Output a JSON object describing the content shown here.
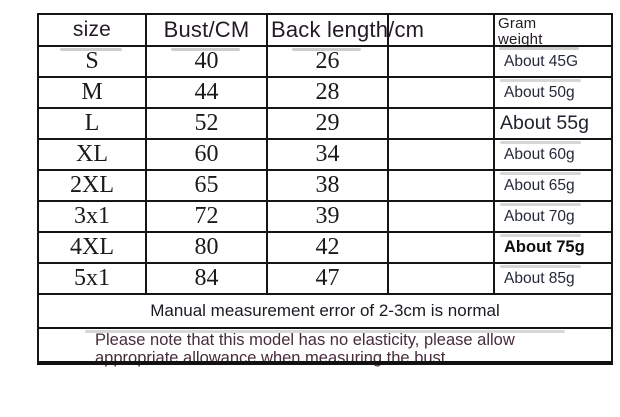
{
  "table": {
    "header": {
      "size": "size",
      "bust": "Bust/CM",
      "back_length": "Back length/cm",
      "gram": "Gram weight"
    },
    "rows": [
      {
        "size": "S",
        "bust": "40",
        "back": "26",
        "gram": "About 45G"
      },
      {
        "size": "M",
        "bust": "44",
        "back": "28",
        "gram": "About 50g"
      },
      {
        "size": "L",
        "bust": "52",
        "back": "29",
        "gram": "About 55g"
      },
      {
        "size": "XL",
        "bust": "60",
        "back": "34",
        "gram": "About 60g"
      },
      {
        "size": "2XL",
        "bust": "65",
        "back": "38",
        "gram": "About 65g"
      },
      {
        "size": "3x1",
        "bust": "72",
        "back": "39",
        "gram": "About 70g"
      },
      {
        "size": "4XL",
        "bust": "80",
        "back": "42",
        "gram": "About 75g"
      },
      {
        "size": "5x1",
        "bust": "84",
        "back": "47",
        "gram": "About 85g"
      }
    ],
    "notes": {
      "measurement": "Manual measurement error of 2-3cm is normal",
      "elasticity": "Please note that this model has no elasticity, please allow appropriate allowance when measuring the bust"
    }
  },
  "colors": {
    "border": "#151515",
    "body_text": "#1a1a1a",
    "gram_text": "#252a3a",
    "note_text": "#472c3a",
    "background": "#ffffff"
  }
}
